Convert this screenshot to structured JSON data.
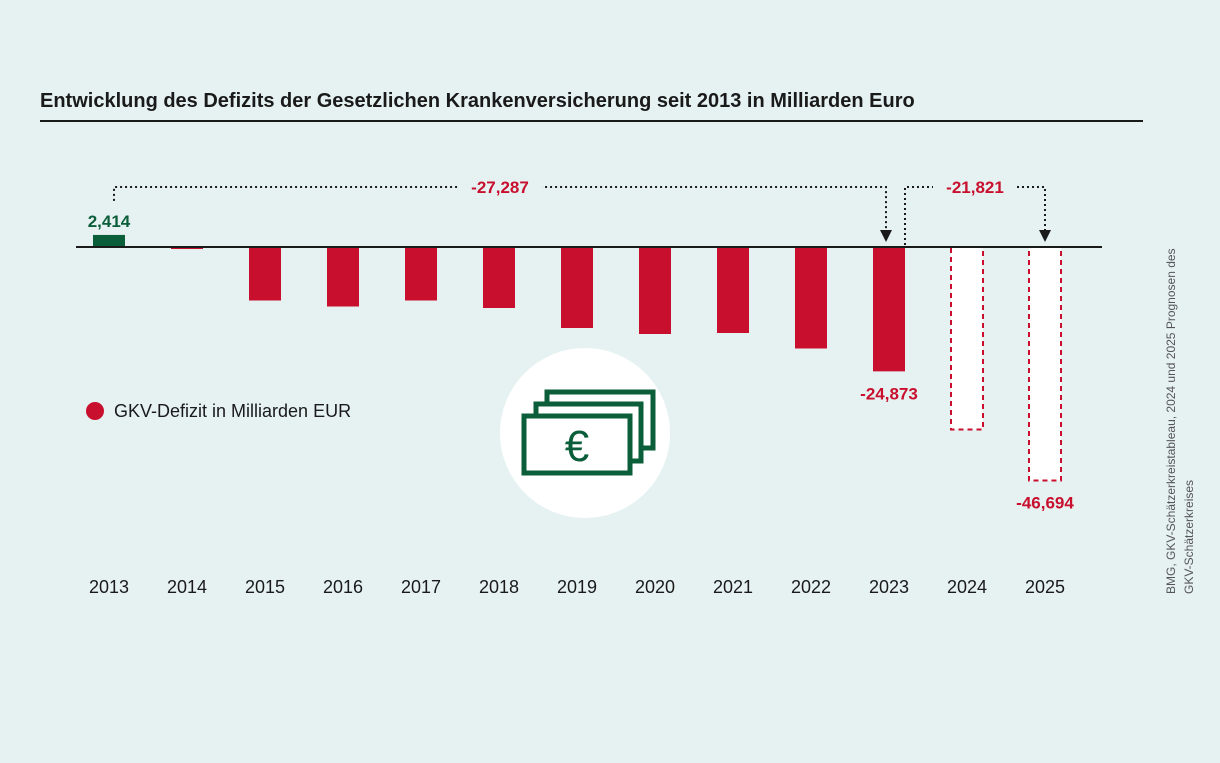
{
  "colors": {
    "background": "#e6f2f2",
    "deficit": "#c8102e",
    "surplus": "#0b5e3a",
    "icon": "#0b5e3a",
    "text": "#1a1a1a",
    "forecast_fill": "#ffffff"
  },
  "chart_data": {
    "type": "bar",
    "title": "Entwicklung des Defizits der Gesetzlichen Krankenversicherung seit 2013 in Milliarden Euro",
    "categories": [
      "2013",
      "2014",
      "2015",
      "2016",
      "2017",
      "2018",
      "2019",
      "2020",
      "2021",
      "2022",
      "2023",
      "2024",
      "2025"
    ],
    "series": [
      {
        "name": "GKV-Defizit in Milliarden EUR",
        "values": [
          2.414,
          -0.4,
          -10.7,
          -11.9,
          -10.7,
          -12.2,
          -16.2,
          -17.4,
          -17.2,
          -20.3,
          -24.873,
          -36.5,
          -46.694
        ],
        "forecast": [
          false,
          false,
          false,
          false,
          false,
          false,
          false,
          false,
          false,
          false,
          false,
          true,
          true
        ]
      }
    ],
    "data_labels": [
      {
        "category": "2013",
        "text": "2,414"
      },
      {
        "category": "2023",
        "text": "-24,873"
      },
      {
        "category": "2025",
        "text": "-46,694"
      }
    ],
    "annotations": [
      {
        "from": "2013",
        "to": "2023",
        "text": "-27,287"
      },
      {
        "from": "2023",
        "to": "2025",
        "text": "-21,821"
      }
    ],
    "legend": {
      "label": "GKV-Defizit in Milliarden EUR",
      "position": "left"
    },
    "grid": false,
    "source": [
      "BMG, GKV-Schätzerkreistableau, 2024 und 2025 Prognosen des",
      "GKV-Schätzerkreises"
    ]
  },
  "icons": {
    "illustration": "euro-banknotes-icon",
    "legend_marker": "circle"
  }
}
